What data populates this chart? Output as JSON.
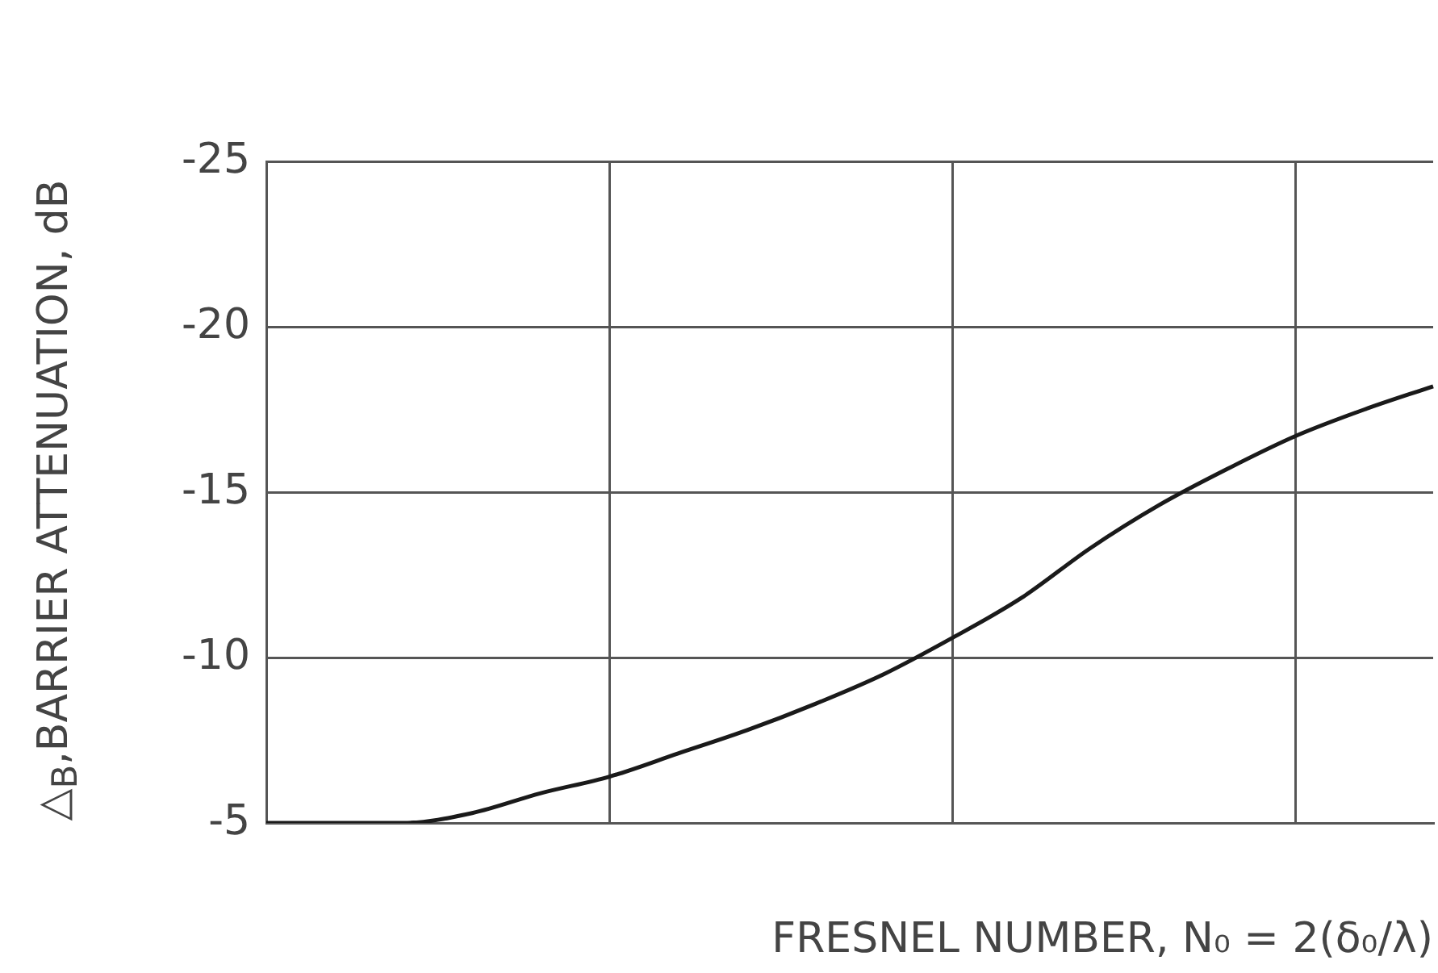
{
  "chart_data": {
    "type": "line",
    "xlabel": "FRESNEL NUMBER, N₀ = 2(δ₀/λ)",
    "ylabel": "△$_{B}$,BARRIER ATTENUATION, dB",
    "categories": [
      null,
      null,
      null,
      null,
      null,
      null,
      null,
      null,
      null,
      null,
      null,
      null,
      null,
      null,
      null,
      null,
      null,
      null
    ],
    "series": [
      {
        "color": "#1a1a1a",
        "values": [
          -5,
          -5,
          -5,
          -5.3,
          -5.9,
          -6.4,
          -7.1,
          -7.8,
          -8.6,
          -9.5,
          -10.6,
          -11.8,
          -13.3,
          -14.6,
          -15.7,
          -16.7,
          -17.5,
          -18.2
        ]
      }
    ],
    "ylim": [
      -5,
      -25
    ],
    "yticks": [
      -5,
      -10,
      -15,
      -20,
      -25
    ],
    "grid": true,
    "legend": false,
    "marker": "none",
    "line_style": "solid",
    "tick_labels": "y"
  }
}
